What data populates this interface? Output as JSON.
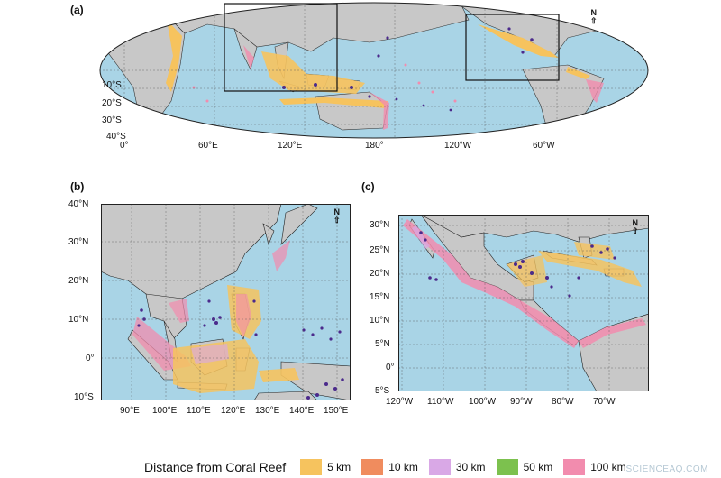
{
  "panels": {
    "a": {
      "label": "(a)",
      "lat_ticks": [
        "10°S",
        "20°S",
        "30°S",
        "40°S"
      ],
      "lon_ticks": [
        "0°",
        "60°E",
        "120°E",
        "180°",
        "120°W",
        "60°W"
      ],
      "north_label": "N"
    },
    "b": {
      "label": "(b)",
      "lat_ticks": [
        "40°N",
        "30°N",
        "20°N",
        "10°N",
        "0°",
        "10°S"
      ],
      "lon_ticks": [
        "90°E",
        "100°E",
        "110°E",
        "120°E",
        "130°E",
        "140°E",
        "150°E"
      ],
      "north_label": "N"
    },
    "c": {
      "label": "(c)",
      "lat_ticks": [
        "30°N",
        "25°N",
        "20°N",
        "15°N",
        "10°N",
        "5°N",
        "0°",
        "5°S"
      ],
      "lon_ticks": [
        "120°W",
        "110°W",
        "100°W",
        "90°W",
        "80°W",
        "70°W"
      ],
      "north_label": "N"
    }
  },
  "legend": {
    "title": "Distance from Coral Reef",
    "items": [
      {
        "label": "5 km",
        "color": "#f6c35e"
      },
      {
        "label": "10 km",
        "color": "#f08c5e"
      },
      {
        "label": "30 km",
        "color": "#d9a8e6"
      },
      {
        "label": "50 km",
        "color": "#7cc14e"
      },
      {
        "label": "100 km",
        "color": "#f28cae"
      }
    ]
  },
  "colors": {
    "ocean": "#a9d4e6",
    "land": "#c8c8c8",
    "reef_marker": "#4b2a8c"
  },
  "watermark": "SCIENCEAQ.COM"
}
